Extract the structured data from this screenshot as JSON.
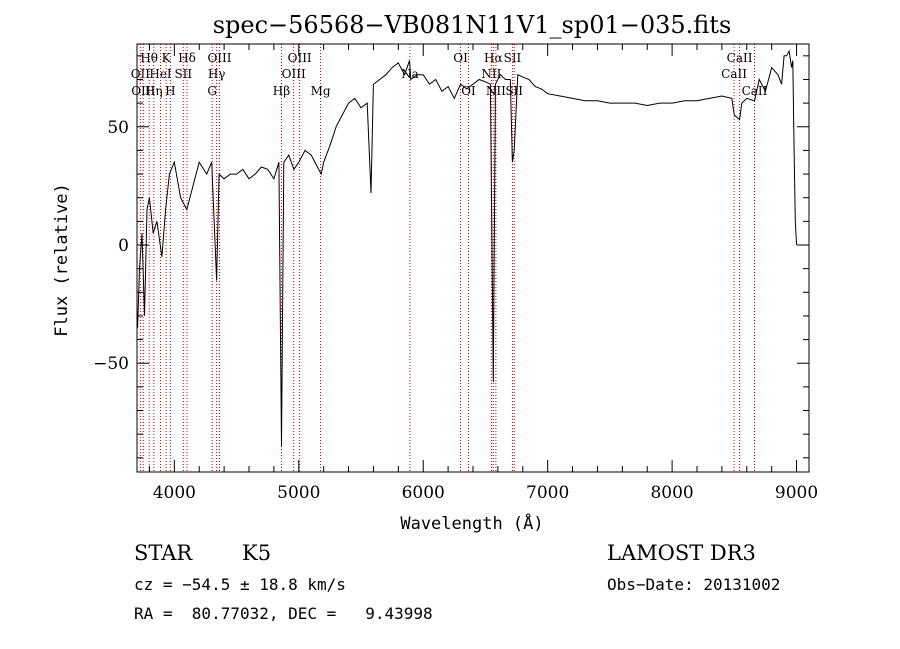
{
  "chart_data": {
    "type": "line",
    "title": "spec−56568−VB081N11V1_sp01−035.fits",
    "xlabel": "Wavelength (Å)",
    "ylabel": "Flux (relative)",
    "xlim": [
      3700,
      9100
    ],
    "ylim": [
      -96,
      85
    ],
    "xticks": [
      4000,
      5000,
      6000,
      7000,
      8000,
      9000
    ],
    "xtick_labels": [
      "4000",
      "5000",
      "6000",
      "7000",
      "8000",
      "9000"
    ],
    "yticks": [
      -50,
      0,
      50
    ],
    "ytick_labels": [
      "−50",
      "0",
      "50"
    ],
    "series": [
      {
        "name": "spectrum",
        "x": [
          3705,
          3720,
          3740,
          3760,
          3780,
          3800,
          3830,
          3860,
          3900,
          3930,
          3960,
          4000,
          4050,
          4100,
          4150,
          4200,
          4260,
          4300,
          4340,
          4360,
          4400,
          4450,
          4500,
          4550,
          4600,
          4650,
          4700,
          4750,
          4800,
          4840,
          4861,
          4880,
          4920,
          4960,
          5000,
          5050,
          5100,
          5150,
          5180,
          5200,
          5250,
          5300,
          5350,
          5400,
          5450,
          5500,
          5550,
          5580,
          5600,
          5650,
          5700,
          5750,
          5800,
          5850,
          5890,
          5900,
          5950,
          6000,
          6050,
          6100,
          6150,
          6200,
          6250,
          6300,
          6350,
          6400,
          6450,
          6500,
          6540,
          6563,
          6580,
          6620,
          6660,
          6700,
          6717,
          6731,
          6760,
          6800,
          6850,
          6900,
          6950,
          7000,
          7100,
          7200,
          7300,
          7400,
          7500,
          7600,
          7700,
          7800,
          7900,
          8000,
          8100,
          8200,
          8300,
          8400,
          8480,
          8500,
          8542,
          8560,
          8600,
          8662,
          8700,
          8750,
          8800,
          8850,
          8880,
          8900,
          8920,
          8940,
          8960,
          8970,
          8980,
          8990,
          9000
        ],
        "y": [
          -35,
          -10,
          5,
          -30,
          15,
          20,
          5,
          10,
          -5,
          15,
          30,
          35,
          20,
          15,
          25,
          35,
          30,
          35,
          -15,
          30,
          28,
          30,
          30,
          32,
          28,
          30,
          33,
          32,
          28,
          35,
          -85,
          35,
          38,
          32,
          35,
          40,
          38,
          33,
          30,
          35,
          42,
          50,
          55,
          60,
          62,
          58,
          60,
          22,
          68,
          70,
          72,
          75,
          77,
          72,
          78,
          70,
          72,
          72,
          68,
          70,
          65,
          67,
          62,
          68,
          66,
          68,
          70,
          69,
          68,
          -58,
          68,
          72,
          70,
          70,
          35,
          40,
          72,
          71,
          70,
          67,
          66,
          64,
          63,
          62,
          61,
          61,
          60,
          60,
          60,
          59,
          60,
          60,
          61,
          61,
          62,
          63,
          62,
          55,
          53,
          60,
          62,
          61,
          70,
          65,
          75,
          72,
          68,
          80,
          80,
          82,
          75,
          78,
          40,
          10,
          0
        ]
      }
    ],
    "line_markers": [
      {
        "label": "Hθ",
        "x": 3798,
        "row": 1
      },
      {
        "label": "OII",
        "x": 3727,
        "row": 2
      },
      {
        "label": "OIII",
        "x": 3750,
        "row": 3
      },
      {
        "label": "Hη",
        "x": 3835,
        "row": 3
      },
      {
        "label": "HeI",
        "x": 3889,
        "row": 2
      },
      {
        "label": "K",
        "x": 3934,
        "row": 1
      },
      {
        "label": "SII",
        "x": 4072,
        "row": 2
      },
      {
        "label": "H",
        "x": 3968,
        "row": 3
      },
      {
        "label": "Hδ",
        "x": 4102,
        "row": 1
      },
      {
        "label": "OIII",
        "x": 4363,
        "row": 1
      },
      {
        "label": "Hγ",
        "x": 4340,
        "row": 2
      },
      {
        "label": "G",
        "x": 4304,
        "row": 3
      },
      {
        "label": "OIII",
        "x": 5007,
        "row": 1
      },
      {
        "label": "OIII",
        "x": 4959,
        "row": 2
      },
      {
        "label": "Hβ",
        "x": 4861,
        "row": 3
      },
      {
        "label": "Mg",
        "x": 5175,
        "row": 3
      },
      {
        "label": "Na",
        "x": 5893,
        "row": 2
      },
      {
        "label": "OI",
        "x": 6300,
        "row": 1
      },
      {
        "label": "OI",
        "x": 6364,
        "row": 3
      },
      {
        "label": "Hα",
        "x": 6563,
        "row": 1
      },
      {
        "label": "NII",
        "x": 6548,
        "row": 2
      },
      {
        "label": "NII",
        "x": 6584,
        "row": 3
      },
      {
        "label": "SII",
        "x": 6717,
        "row": 1
      },
      {
        "label": "SII",
        "x": 6731,
        "row": 3
      },
      {
        "label": "CaII",
        "x": 8542,
        "row": 1
      },
      {
        "label": "CaII",
        "x": 8498,
        "row": 2
      },
      {
        "label": "CaII",
        "x": 8662,
        "row": 3
      }
    ]
  },
  "info": {
    "class": "STAR",
    "subclass": "K5",
    "survey": "LAMOST DR3",
    "cz": "cz = −54.5 ± 18.8 km/s",
    "obs_date": "Obs−Date: 20131002",
    "coords": "RA =  80.77032, DEC =   9.43998"
  }
}
